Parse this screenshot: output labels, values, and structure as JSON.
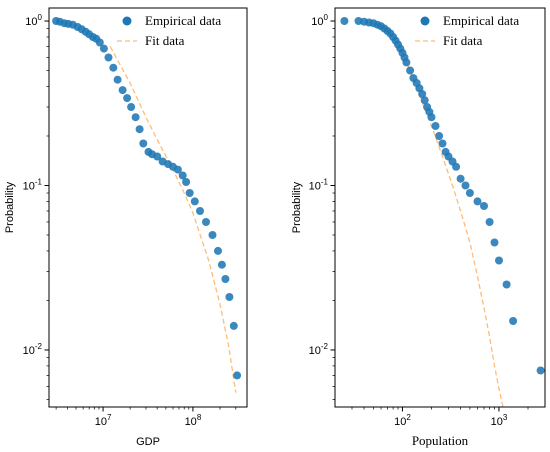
{
  "chart_data": [
    {
      "type": "scatter",
      "scale": {
        "x": "log",
        "y": "log"
      },
      "xlabel": "GDP",
      "ylabel": "Probability",
      "xlim": [
        2500000,
        400000000
      ],
      "ylim": [
        0.0045,
        1.2
      ],
      "x_ticks": [
        {
          "value": 10000000,
          "label": "10^7"
        },
        {
          "value": 100000000,
          "label": "10^8"
        }
      ],
      "y_ticks": [
        {
          "value": 1,
          "label": "10^0"
        },
        {
          "value": 0.1,
          "label": "10^-1"
        },
        {
          "value": 0.01,
          "label": "10^-2"
        }
      ],
      "legend": {
        "position": "top-right",
        "entries": [
          "Empirical data",
          "Fit data"
        ]
      },
      "colors": {
        "empirical": "#1f77b4",
        "fit": "#ffbb78"
      },
      "series": [
        {
          "name": "Empirical data",
          "kind": "points",
          "x": [
            3000000,
            3300000,
            3700000,
            4100000,
            4600000,
            5200000,
            5800000,
            6400000,
            7000000,
            7700000,
            8400000,
            9200000,
            10200000,
            11500000,
            13000000,
            14500000,
            16500000,
            18500000,
            20500000,
            23000000,
            25500000,
            28000000,
            32000000,
            35000000,
            40000000,
            46000000,
            53000000,
            60000000,
            68000000,
            77000000,
            84000000,
            92000000,
            105000000,
            120000000,
            140000000,
            165000000,
            190000000,
            210000000,
            230000000,
            255000000,
            285000000,
            310000000
          ],
          "y": [
            1.0,
            0.99,
            0.97,
            0.96,
            0.95,
            0.92,
            0.89,
            0.86,
            0.83,
            0.8,
            0.78,
            0.74,
            0.68,
            0.6,
            0.52,
            0.44,
            0.38,
            0.34,
            0.3,
            0.26,
            0.22,
            0.18,
            0.16,
            0.155,
            0.15,
            0.14,
            0.135,
            0.13,
            0.125,
            0.115,
            0.105,
            0.09,
            0.08,
            0.07,
            0.06,
            0.05,
            0.04,
            0.033,
            0.027,
            0.021,
            0.014,
            0.007
          ]
        },
        {
          "name": "Fit data",
          "kind": "dashed-line",
          "x": [
            12000000,
            20000000,
            30000000,
            40000000,
            60000000,
            80000000,
            100000000,
            150000000,
            200000000,
            250000000,
            300000000
          ],
          "y": [
            0.7,
            0.42,
            0.26,
            0.19,
            0.125,
            0.09,
            0.068,
            0.035,
            0.019,
            0.0105,
            0.0055
          ]
        }
      ]
    },
    {
      "type": "scatter",
      "scale": {
        "x": "log",
        "y": "log"
      },
      "xlabel": "Population",
      "ylabel": "Probability",
      "xlim": [
        20,
        3000
      ],
      "ylim": [
        0.0045,
        1.2
      ],
      "x_ticks": [
        {
          "value": 100,
          "label": "10^2"
        },
        {
          "value": 1000,
          "label": "10^3"
        }
      ],
      "y_ticks": [
        {
          "value": 1,
          "label": "10^0"
        },
        {
          "value": 0.1,
          "label": "10^-1"
        },
        {
          "value": 0.01,
          "label": "10^-2"
        }
      ],
      "legend": {
        "position": "top-right",
        "entries": [
          "Empirical data",
          "Fit data"
        ]
      },
      "colors": {
        "empirical": "#1f77b4",
        "fit": "#ffbb78"
      },
      "series": [
        {
          "name": "Empirical data",
          "kind": "points",
          "x": [
            25,
            35,
            40,
            45,
            50,
            55,
            60,
            65,
            70,
            75,
            80,
            85,
            90,
            95,
            100,
            105,
            110,
            120,
            130,
            140,
            150,
            160,
            170,
            180,
            190,
            200,
            220,
            240,
            260,
            280,
            300,
            330,
            360,
            400,
            450,
            500,
            600,
            700,
            800,
            900,
            1000,
            1200,
            1400,
            2700
          ],
          "y": [
            1.0,
            1.0,
            0.99,
            0.98,
            0.97,
            0.95,
            0.93,
            0.9,
            0.87,
            0.84,
            0.8,
            0.76,
            0.72,
            0.68,
            0.64,
            0.6,
            0.56,
            0.5,
            0.45,
            0.42,
            0.39,
            0.36,
            0.33,
            0.3,
            0.28,
            0.26,
            0.23,
            0.2,
            0.18,
            0.16,
            0.15,
            0.14,
            0.13,
            0.11,
            0.1,
            0.09,
            0.08,
            0.075,
            0.06,
            0.045,
            0.035,
            0.025,
            0.015,
            0.0075
          ]
        },
        {
          "name": "Fit data",
          "kind": "dashed-line",
          "x": [
            90,
            120,
            160,
            200,
            260,
            330,
            400,
            500,
            600,
            700,
            800,
            900,
            1000,
            1100
          ],
          "y": [
            0.75,
            0.5,
            0.32,
            0.23,
            0.15,
            0.1,
            0.07,
            0.045,
            0.028,
            0.018,
            0.012,
            0.008,
            0.0058,
            0.0045
          ]
        }
      ]
    }
  ]
}
